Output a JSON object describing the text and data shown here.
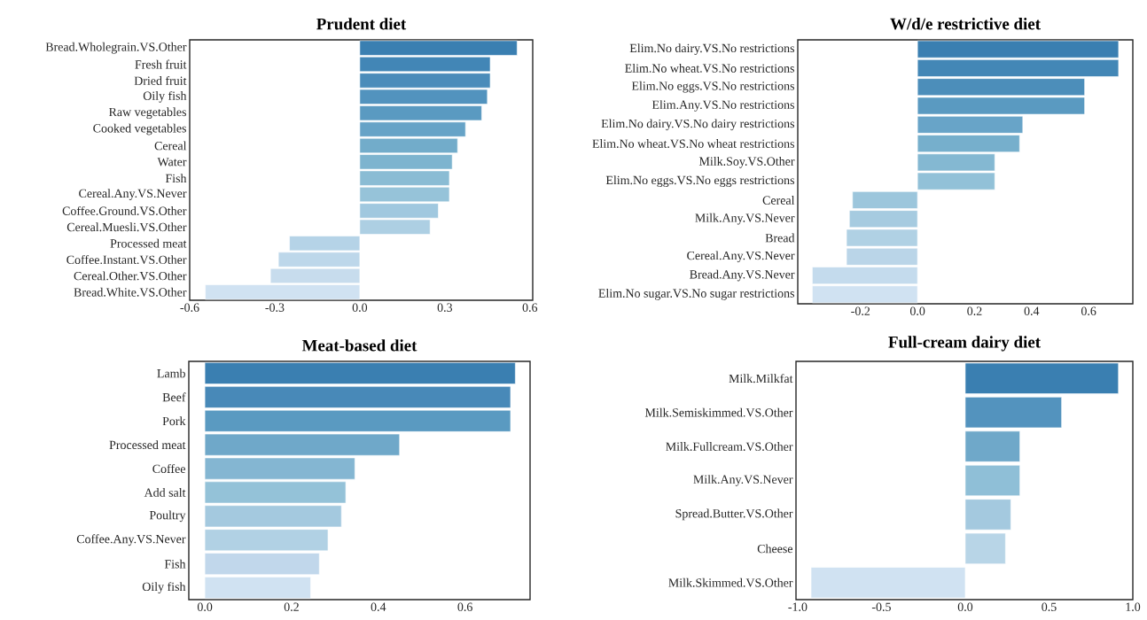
{
  "chart_data": [
    {
      "type": "bar",
      "orientation": "horizontal",
      "title": "Prudent diet",
      "categories": [
        "Bread.Wholegrain.VS.Other",
        "Fresh fruit",
        "Dried fruit",
        "Oily fish",
        "Raw vegetables",
        "Cooked vegetables",
        "Cereal",
        "Water",
        "Fish",
        "Cereal.Any.VS.Never",
        "Coffee.Ground.VS.Other",
        "Cereal.Muesli.VS.Other",
        "Processed meat",
        "Coffee.Instant.VS.Other",
        "Cereal.Other.VS.Other",
        "Bread.White.VS.Other"
      ],
      "values": [
        0.555,
        0.46,
        0.46,
        0.45,
        0.43,
        0.373,
        0.345,
        0.326,
        0.316,
        0.316,
        0.277,
        0.248,
        -0.248,
        -0.287,
        -0.315,
        -0.545
      ],
      "colors": [
        "#3a7fb1",
        "#4286b6",
        "#4a8cba",
        "#5293be",
        "#5a9ac1",
        "#66a3c7",
        "#72acca",
        "#7db4cf",
        "#8abcd4",
        "#96c3d9",
        "#a0c8df",
        "#adcfe3",
        "#b5d3e7",
        "#bdd7ea",
        "#c7dced",
        "#d0e2f2"
      ],
      "xlim": [
        -0.6,
        0.61
      ],
      "xticks": [
        -0.6,
        -0.3,
        {
          "value": 0,
          "label": "0.0"
        },
        0.3,
        0.6
      ]
    },
    {
      "type": "bar",
      "orientation": "horizontal",
      "title": "W/d/e restrictive diet",
      "categories": [
        "Elim.No dairy.VS.No restrictions",
        "Elim.No wheat.VS.No restrictions",
        "Elim.No eggs.VS.No restrictions",
        "Elim.Any.VS.No restrictions",
        "Elim.No dairy.VS.No dairy restrictions",
        "Elim.No wheat.VS.No wheat restrictions",
        "Milk.Soy.VS.Other",
        "Elim.No eggs.VS.No eggs restrictions",
        "Cereal",
        "Milk.Any.VS.Never",
        "Bread",
        "Cereal.Any.VS.Never",
        "Bread.Any.VS.Never",
        "Elim.No sugar.VS.No sugar restrictions"
      ],
      "values": [
        0.705,
        0.705,
        0.586,
        0.586,
        0.369,
        0.358,
        0.271,
        0.271,
        -0.228,
        -0.239,
        -0.249,
        -0.249,
        -0.369,
        -0.369
      ],
      "colors": [
        "#3a7fb1",
        "#4387b6",
        "#4c8eba",
        "#5a9ac1",
        "#68a4c8",
        "#76afcc",
        "#84b8d2",
        "#92c1d8",
        "#9cc6dc",
        "#a6cbe0",
        "#b0d1e4",
        "#bad5e8",
        "#c4dbed",
        "#d0e2f2"
      ],
      "xlim": [
        -0.42,
        0.755
      ],
      "xticks": [
        -0.2,
        {
          "value": 0,
          "label": "0.0"
        },
        0.2,
        0.4,
        0.6
      ]
    },
    {
      "type": "bar",
      "orientation": "horizontal",
      "title": "Meat-based diet",
      "categories": [
        "Lamb",
        "Beef",
        "Pork",
        "Processed meat",
        "Coffee",
        "Add salt",
        "Poultry",
        "Coffee.Any.VS.Never",
        "Fish",
        "Oily fish"
      ],
      "values": [
        0.716,
        0.705,
        0.705,
        0.449,
        0.346,
        0.325,
        0.315,
        0.284,
        0.264,
        0.244
      ],
      "colors": [
        "#3a7fb1",
        "#4889b8",
        "#5a9ac1",
        "#6fa8c9",
        "#84b6d2",
        "#94c2d8",
        "#a4c9df",
        "#b1d1e4",
        "#c1d7eb",
        "#d0e2f2"
      ],
      "xlim": [
        -0.037,
        0.75
      ],
      "xticks": [
        {
          "value": 0,
          "label": "0.0"
        },
        0.2,
        0.4,
        0.6
      ]
    },
    {
      "type": "bar",
      "orientation": "horizontal",
      "title": "Full-cream dairy diet",
      "categories": [
        "Milk.Milkfat",
        "Milk.Semiskimmed.VS.Other",
        "Milk.Fullcream.VS.Other",
        "Milk.Any.VS.Never",
        "Spread.Butter.VS.Other",
        "Cheese",
        "Milk.Skimmed.VS.Other"
      ],
      "values": [
        0.914,
        0.575,
        0.326,
        0.326,
        0.272,
        0.24,
        -0.92
      ],
      "colors": [
        "#3a7fb1",
        "#5393be",
        "#6fa8c9",
        "#8fbfd7",
        "#a4c9df",
        "#b8d5e7",
        "#d0e2f2"
      ],
      "xlim": [
        -1.01,
        1.0
      ],
      "xticks": [
        {
          "value": -1,
          "label": "-1.0"
        },
        -0.5,
        {
          "value": 0,
          "label": "0.0"
        },
        0.5,
        {
          "value": 1,
          "label": "1.0"
        }
      ]
    }
  ]
}
